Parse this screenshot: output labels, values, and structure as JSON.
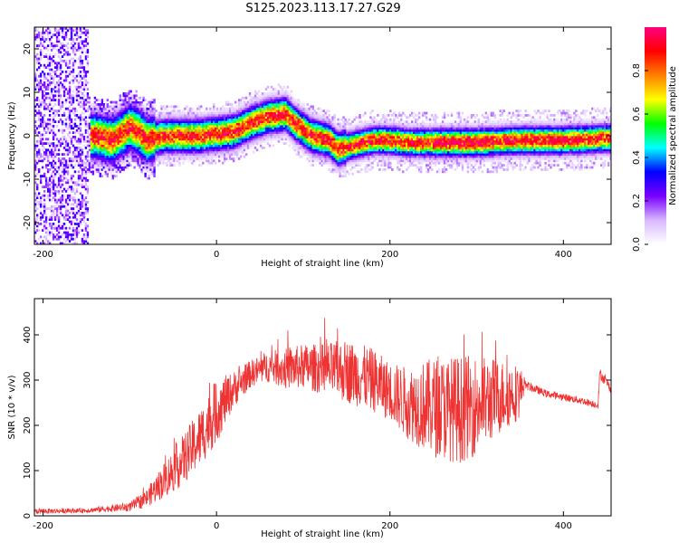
{
  "title": "S125.2023.113.17.27.G29",
  "chart_data": [
    {
      "type": "heatmap",
      "xlabel": "Height of straight line (km)",
      "ylabel": "Frequency (Hz)",
      "xlim": [
        -210,
        455
      ],
      "ylim": [
        -25,
        25
      ],
      "xticks": [
        -200,
        0,
        200,
        400
      ],
      "yticks": [
        -20,
        -10,
        0,
        10,
        20
      ],
      "colorbar": {
        "label": "Normalized spectral amplitude",
        "range": [
          0,
          1
        ],
        "ticks": [
          "0.0",
          "0.2",
          "0.4",
          "0.6",
          "0.8"
        ],
        "colors": [
          "#ffffff",
          "#d8b8ff",
          "#7a00ff",
          "#0000ff",
          "#00ffff",
          "#00ff00",
          "#ffff00",
          "#ff8000",
          "#ff0000",
          "#ff0080"
        ]
      },
      "ridge": {
        "x": [
          -140,
          -120,
          -100,
          -90,
          -80,
          -60,
          -20,
          0,
          20,
          40,
          60,
          80,
          90,
          110,
          130,
          140,
          160,
          180,
          200,
          220,
          260,
          300,
          350,
          400,
          455
        ],
        "y": [
          0,
          -1,
          2,
          1,
          -1,
          0,
          0,
          0.5,
          1,
          3,
          4.5,
          5,
          3,
          0,
          -1,
          -3,
          -2,
          -1,
          -1,
          -1.5,
          -1.5,
          -1.5,
          -1,
          -1,
          -0.5
        ]
      }
    },
    {
      "type": "line",
      "xlabel": "Height of straight line (km)",
      "ylabel": "SNR (10 * v/v)",
      "xlim": [
        -210,
        455
      ],
      "ylim": [
        0,
        480
      ],
      "xticks": [
        -200,
        0,
        200,
        400
      ],
      "yticks": [
        0,
        100,
        200,
        300,
        400
      ],
      "color": "#ee3333",
      "envelope": {
        "x": [
          -210,
          -150,
          -100,
          -80,
          -60,
          -40,
          -20,
          0,
          20,
          40,
          60,
          80,
          100,
          120,
          150,
          180,
          200,
          220,
          250,
          280,
          300,
          320,
          350,
          355,
          380,
          420,
          440,
          442,
          455
        ],
        "center": [
          10,
          12,
          20,
          40,
          80,
          120,
          170,
          230,
          280,
          315,
          330,
          325,
          330,
          325,
          320,
          300,
          275,
          250,
          240,
          235,
          245,
          260,
          275,
          290,
          270,
          255,
          245,
          315,
          280
        ],
        "amplitude": [
          6,
          5,
          10,
          20,
          40,
          55,
          65,
          70,
          40,
          30,
          35,
          45,
          50,
          55,
          70,
          70,
          65,
          80,
          110,
          120,
          110,
          90,
          60,
          10,
          8,
          8,
          8,
          12,
          10
        ]
      }
    }
  ]
}
